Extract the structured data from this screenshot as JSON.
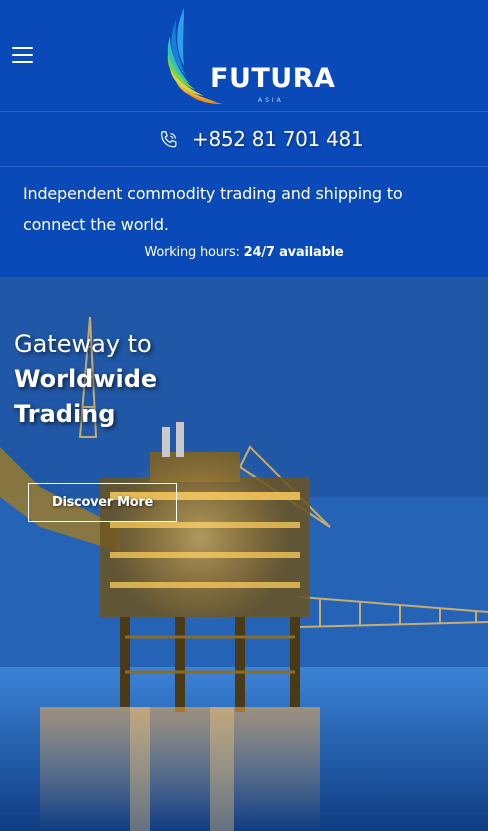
{
  "header": {
    "menu_icon": "hamburger-menu-icon",
    "logo": {
      "brand": "FUTURA",
      "sub": "ASIA"
    }
  },
  "contact": {
    "phone_icon": "phone-icon",
    "phone": "+852 81 701 481"
  },
  "intro": {
    "tagline": "Independent commodity trading and shipping to connect the world.",
    "hours_label": "Working hours:",
    "hours_value": "24/7 available"
  },
  "hero": {
    "title_light": "Gateway to",
    "title_bold_1": "Worldwide",
    "title_bold_2": "Trading",
    "cta_label": "Discover More",
    "image": "offshore-oil-platform-image"
  },
  "colors": {
    "primary": "#0a49b8",
    "divider": "#2f63c6",
    "white": "#ffffff"
  }
}
